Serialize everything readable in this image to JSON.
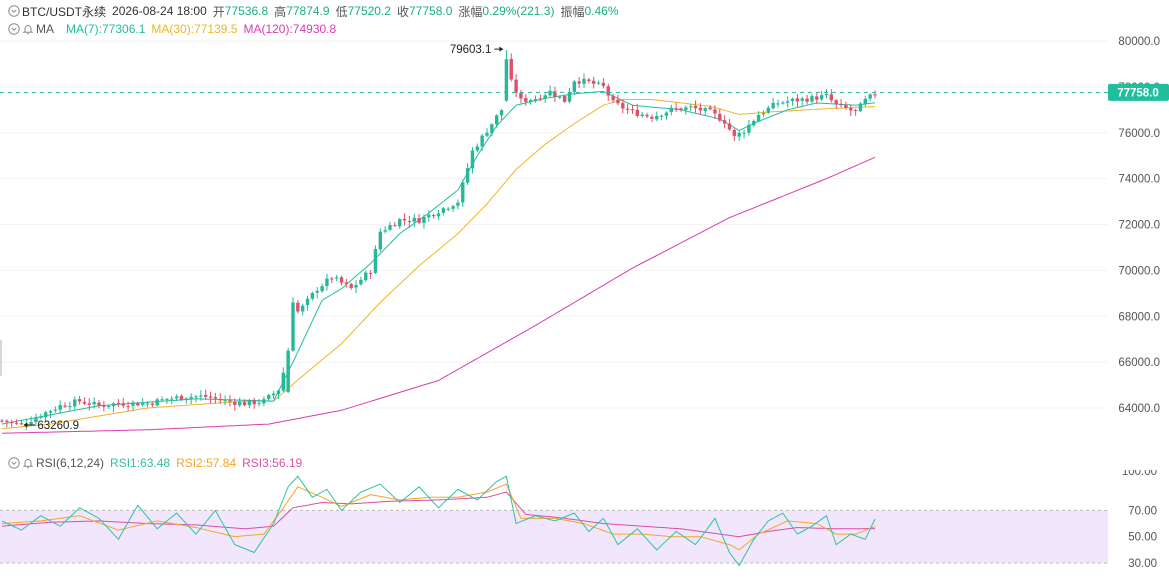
{
  "header": {
    "symbol": "BTC/USDT永续",
    "time": "2026-08-24 18:00",
    "open_label": "开",
    "open": "77536.8",
    "high_label": "高",
    "high": "77874.9",
    "low_label": "低",
    "low": "77520.2",
    "close_label": "收",
    "close": "77758.0",
    "change_label": "涨幅",
    "change": "0.29%(221.3)",
    "amp_label": "振幅",
    "amp": "0.46%"
  },
  "ma_legend": {
    "label": "MA",
    "ma7": "MA(7):77306.1",
    "ma30": "MA(30):77139.5",
    "ma120": "MA(120):74930.8"
  },
  "rsi_legend": {
    "label": "RSI(6,12,24)",
    "rsi1": "RSI1:63.48",
    "rsi2": "RSI2:57.84",
    "rsi3": "RSI3:56.19"
  },
  "colors": {
    "up": "#26b89a",
    "down": "#e0506b",
    "ma7": "#1fbf9e",
    "ma30": "#f0b429",
    "ma120": "#d83cb0",
    "rsi1": "#2ec2a6",
    "rsi2": "#f5a623",
    "rsi3": "#d94fa8",
    "price_tag": "#1fbf9e"
  },
  "chart_data": [
    {
      "type": "candlestick",
      "y_ticks": [
        "80000.0",
        "78000.0",
        "76000.0",
        "74000.0",
        "72000.0",
        "70000.0",
        "68000.0",
        "66000.0",
        "64000.0"
      ],
      "ylim": [
        62700,
        80800
      ],
      "last_price": "77758.0",
      "last_price_value": 77758.0,
      "max_label": "79603.1",
      "max_value": 79603.1,
      "max_index": 104,
      "min_label": "63260.9",
      "min_value": 63260.9,
      "min_index": 4,
      "anchors": [
        [
          0,
          63450
        ],
        [
          4,
          63270
        ],
        [
          8,
          63700
        ],
        [
          12,
          64100
        ],
        [
          16,
          64300
        ],
        [
          20,
          64100
        ],
        [
          24,
          64200
        ],
        [
          30,
          64200
        ],
        [
          34,
          64400
        ],
        [
          38,
          64500
        ],
        [
          42,
          64500
        ],
        [
          46,
          64300
        ],
        [
          50,
          64200
        ],
        [
          54,
          64300
        ],
        [
          57,
          64800
        ],
        [
          59,
          66300
        ],
        [
          60,
          68000
        ],
        [
          62,
          68400
        ],
        [
          65,
          69200
        ],
        [
          68,
          69700
        ],
        [
          72,
          69200
        ],
        [
          76,
          70000
        ],
        [
          78,
          71700
        ],
        [
          82,
          72200
        ],
        [
          86,
          72200
        ],
        [
          90,
          72600
        ],
        [
          94,
          73000
        ],
        [
          97,
          75200
        ],
        [
          100,
          76100
        ],
        [
          103,
          77000
        ],
        [
          104,
          79500
        ],
        [
          105,
          78200
        ],
        [
          107,
          77400
        ],
        [
          110,
          77500
        ],
        [
          113,
          77800
        ],
        [
          116,
          77400
        ],
        [
          118,
          78300
        ],
        [
          121,
          78200
        ],
        [
          124,
          78000
        ],
        [
          126,
          77300
        ],
        [
          130,
          76900
        ],
        [
          134,
          76700
        ],
        [
          138,
          77000
        ],
        [
          142,
          77100
        ],
        [
          146,
          76900
        ],
        [
          149,
          76500
        ],
        [
          151,
          75800
        ],
        [
          153,
          76100
        ],
        [
          156,
          76800
        ],
        [
          160,
          77300
        ],
        [
          163,
          77400
        ],
        [
          167,
          77500
        ],
        [
          170,
          77600
        ],
        [
          172,
          77200
        ],
        [
          176,
          76900
        ],
        [
          178,
          77400
        ],
        [
          180,
          77700
        ]
      ],
      "ma_anchors": {
        "ma7": [
          [
            0,
            63300
          ],
          [
            20,
            64100
          ],
          [
            40,
            64400
          ],
          [
            56,
            64300
          ],
          [
            60,
            66000
          ],
          [
            66,
            68700
          ],
          [
            70,
            69200
          ],
          [
            76,
            70300
          ],
          [
            82,
            71600
          ],
          [
            88,
            72500
          ],
          [
            94,
            73500
          ],
          [
            98,
            75000
          ],
          [
            102,
            76300
          ],
          [
            106,
            77200
          ],
          [
            112,
            77500
          ],
          [
            118,
            77700
          ],
          [
            124,
            77800
          ],
          [
            130,
            77200
          ],
          [
            140,
            77000
          ],
          [
            148,
            76600
          ],
          [
            152,
            76100
          ],
          [
            156,
            76500
          ],
          [
            162,
            77000
          ],
          [
            168,
            77300
          ],
          [
            176,
            77200
          ],
          [
            180,
            77306
          ]
        ],
        "ma30": [
          [
            0,
            63100
          ],
          [
            10,
            63300
          ],
          [
            30,
            64000
          ],
          [
            50,
            64300
          ],
          [
            56,
            64300
          ],
          [
            62,
            65400
          ],
          [
            70,
            66800
          ],
          [
            78,
            68600
          ],
          [
            86,
            70200
          ],
          [
            94,
            71600
          ],
          [
            100,
            72900
          ],
          [
            106,
            74400
          ],
          [
            112,
            75500
          ],
          [
            118,
            76400
          ],
          [
            124,
            77200
          ],
          [
            128,
            77450
          ],
          [
            134,
            77450
          ],
          [
            146,
            77150
          ],
          [
            152,
            76800
          ],
          [
            158,
            76900
          ],
          [
            170,
            77050
          ],
          [
            180,
            77139
          ]
        ],
        "ma120": [
          [
            0,
            62900
          ],
          [
            30,
            63050
          ],
          [
            55,
            63300
          ],
          [
            70,
            63900
          ],
          [
            90,
            65200
          ],
          [
            110,
            67600
          ],
          [
            130,
            70100
          ],
          [
            150,
            72300
          ],
          [
            170,
            74000
          ],
          [
            180,
            74930
          ]
        ]
      }
    },
    {
      "type": "line",
      "name": "RSI",
      "y_ticks": [
        "100.00",
        "70.00",
        "50.00",
        "30.00"
      ],
      "ylim": [
        20,
        105
      ],
      "band": [
        30,
        70
      ],
      "series_anchors": {
        "rsi1": [
          [
            0,
            62
          ],
          [
            4,
            55
          ],
          [
            8,
            66
          ],
          [
            12,
            58
          ],
          [
            16,
            72
          ],
          [
            20,
            64
          ],
          [
            24,
            48
          ],
          [
            28,
            74
          ],
          [
            32,
            56
          ],
          [
            36,
            68
          ],
          [
            40,
            52
          ],
          [
            44,
            70
          ],
          [
            48,
            44
          ],
          [
            52,
            38
          ],
          [
            56,
            60
          ],
          [
            59,
            88
          ],
          [
            61,
            96
          ],
          [
            64,
            80
          ],
          [
            67,
            86
          ],
          [
            70,
            70
          ],
          [
            74,
            84
          ],
          [
            78,
            90
          ],
          [
            82,
            76
          ],
          [
            86,
            88
          ],
          [
            90,
            72
          ],
          [
            94,
            86
          ],
          [
            98,
            78
          ],
          [
            102,
            92
          ],
          [
            104,
            96
          ],
          [
            106,
            60
          ],
          [
            110,
            66
          ],
          [
            114,
            62
          ],
          [
            118,
            68
          ],
          [
            121,
            54
          ],
          [
            124,
            64
          ],
          [
            127,
            44
          ],
          [
            131,
            56
          ],
          [
            135,
            40
          ],
          [
            139,
            54
          ],
          [
            143,
            44
          ],
          [
            147,
            64
          ],
          [
            150,
            38
          ],
          [
            152,
            28
          ],
          [
            155,
            48
          ],
          [
            158,
            62
          ],
          [
            161,
            68
          ],
          [
            164,
            52
          ],
          [
            167,
            58
          ],
          [
            170,
            66
          ],
          [
            172,
            44
          ],
          [
            175,
            52
          ],
          [
            178,
            48
          ],
          [
            180,
            63.5
          ]
        ],
        "rsi2": [
          [
            0,
            60
          ],
          [
            8,
            62
          ],
          [
            16,
            66
          ],
          [
            24,
            55
          ],
          [
            32,
            62
          ],
          [
            40,
            57
          ],
          [
            48,
            50
          ],
          [
            54,
            52
          ],
          [
            58,
            72
          ],
          [
            61,
            88
          ],
          [
            66,
            80
          ],
          [
            70,
            73
          ],
          [
            76,
            82
          ],
          [
            82,
            78
          ],
          [
            88,
            80
          ],
          [
            94,
            80
          ],
          [
            100,
            84
          ],
          [
            104,
            90
          ],
          [
            107,
            64
          ],
          [
            114,
            64
          ],
          [
            120,
            60
          ],
          [
            126,
            52
          ],
          [
            132,
            52
          ],
          [
            138,
            50
          ],
          [
            144,
            50
          ],
          [
            150,
            44
          ],
          [
            152,
            40
          ],
          [
            156,
            52
          ],
          [
            162,
            62
          ],
          [
            168,
            60
          ],
          [
            172,
            52
          ],
          [
            176,
            52
          ],
          [
            180,
            57.8
          ]
        ],
        "rsi3": [
          [
            0,
            58
          ],
          [
            10,
            61
          ],
          [
            20,
            62
          ],
          [
            30,
            60
          ],
          [
            40,
            59
          ],
          [
            50,
            56
          ],
          [
            56,
            58
          ],
          [
            60,
            72
          ],
          [
            66,
            76
          ],
          [
            72,
            75
          ],
          [
            80,
            77
          ],
          [
            90,
            78
          ],
          [
            100,
            80
          ],
          [
            104,
            84
          ],
          [
            108,
            67
          ],
          [
            116,
            64
          ],
          [
            124,
            60
          ],
          [
            132,
            58
          ],
          [
            140,
            56
          ],
          [
            148,
            52
          ],
          [
            152,
            50
          ],
          [
            158,
            54
          ],
          [
            164,
            57
          ],
          [
            172,
            56
          ],
          [
            180,
            56.2
          ]
        ]
      }
    }
  ]
}
